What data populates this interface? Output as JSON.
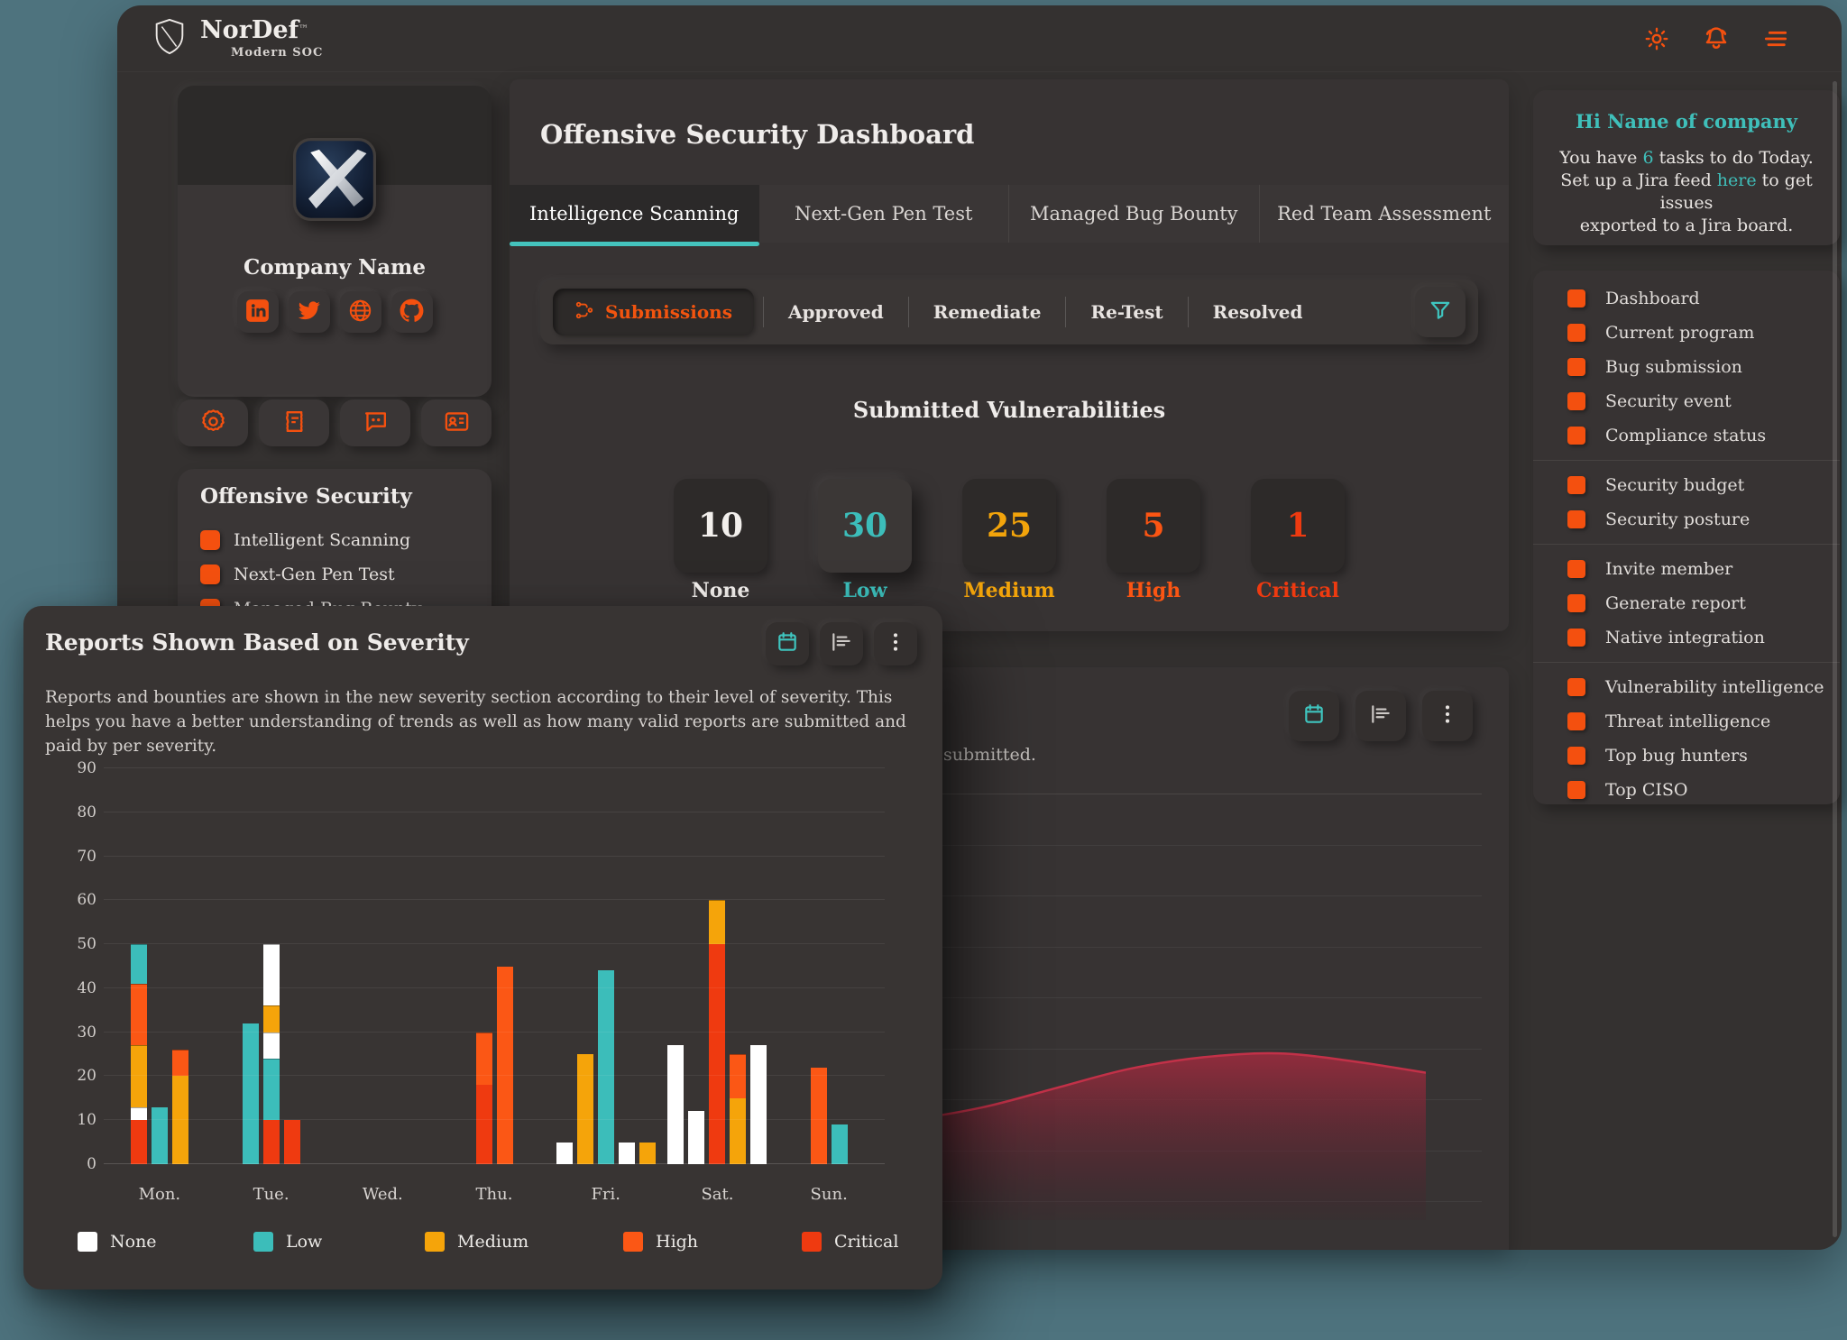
{
  "header": {
    "brand": "NorDef",
    "tm": "™",
    "subtitle": "Modern SOC",
    "actions": [
      "theme-sun",
      "notifications-bell",
      "menu"
    ]
  },
  "left_sidebar": {
    "profile": {
      "company_name": "Company Name",
      "socials": [
        "linkedin",
        "twitter",
        "globe",
        "github"
      ]
    },
    "quick_actions": [
      "settings-gear",
      "receipt",
      "chat",
      "contact-card"
    ],
    "menu": {
      "title": "Offensive Security",
      "items": [
        "Intelligent Scanning",
        "Next-Gen Pen Test",
        "Managed Bug Bounty"
      ]
    }
  },
  "main": {
    "title": "Offensive Security Dashboard",
    "tabs": [
      {
        "label": "Intelligence Scanning",
        "active": true
      },
      {
        "label": "Next-Gen Pen Test",
        "active": false
      },
      {
        "label": "Managed Bug Bounty",
        "active": false
      },
      {
        "label": "Red Team Assessment",
        "active": false
      }
    ],
    "subtabs": {
      "active": "Submissions",
      "items": [
        "Submissions",
        "Approved",
        "Remediate",
        "Re-Test",
        "Resolved"
      ]
    },
    "vuln": {
      "heading": "Submitted Vulnerabilities",
      "stats": [
        {
          "value": "10",
          "label": "None",
          "color": "#f2efec",
          "elevated": false
        },
        {
          "value": "30",
          "label": "Low",
          "color": "#3cbdba",
          "elevated": true
        },
        {
          "value": "25",
          "label": "Medium",
          "color": "#f2a40b",
          "elevated": false
        },
        {
          "value": "5",
          "label": "High",
          "color": "#fb5513",
          "elevated": false
        },
        {
          "value": "1",
          "label": "Critical",
          "color": "#ee3a10",
          "elevated": false
        }
      ]
    }
  },
  "area_panel": {
    "visible_text": "submitted.",
    "toolbar_icons": [
      "calendar",
      "bar-rows",
      "kebab"
    ]
  },
  "right_sidebar": {
    "greeting": {
      "title": "Hi Name of company",
      "lines": [
        [
          {
            "t": "You have "
          },
          {
            "t": "6",
            "accent": true
          },
          {
            "t": " tasks to do Today."
          }
        ],
        [
          {
            "t": "Set up a Jira feed "
          },
          {
            "t": "here",
            "accent": true,
            "link": true
          },
          {
            "t": " to get issues"
          }
        ],
        [
          {
            "t": "exported to a Jira board."
          }
        ]
      ]
    },
    "tasks": {
      "groups": [
        [
          "Dashboard",
          "Current program",
          "Bug submission",
          "Security event",
          "Compliance status"
        ],
        [
          "Security budget",
          "Security posture"
        ],
        [
          "Invite member",
          "Generate report",
          "Native integration"
        ],
        [
          "Vulnerability intelligence",
          "Threat intelligence",
          "Top bug hunters",
          "Top CISO"
        ]
      ]
    }
  },
  "overlay": {
    "title": "Reports Shown Based on Severity",
    "description": "Reports and bounties are shown in the new severity section according to their level of severity. This helps you have a better understanding of trends as well as how many valid reports are submitted and paid by per severity.",
    "toolbar_icons": [
      "calendar",
      "bar-rows",
      "kebab"
    ]
  },
  "chart_data": [
    {
      "type": "bar",
      "stacked": true,
      "title": "Reports Shown Based on Severity",
      "categories": [
        "Mon.",
        "Tue.",
        "Wed.",
        "Thu.",
        "Fri.",
        "Sat.",
        "Sun."
      ],
      "legend": [
        "None",
        "Low",
        "Medium",
        "High",
        "Critical"
      ],
      "legend_position": "bottom",
      "colors": {
        "None": "#ffffff",
        "Low": "#3cbdba",
        "Medium": "#f5a40a",
        "High": "#fb5715",
        "Critical": "#ef3a10"
      },
      "ylim": [
        0,
        90
      ],
      "ytick_step": 10,
      "grid": true,
      "days": [
        {
          "label": "Mon.",
          "bars": [
            [
              [
                "Critical",
                10
              ],
              [
                "None",
                3
              ],
              [
                "Medium",
                14
              ],
              [
                "High",
                14
              ],
              [
                "Low",
                9
              ]
            ],
            [
              [
                "Low",
                13
              ]
            ],
            [
              [
                "Medium",
                20
              ],
              [
                "High",
                6
              ]
            ]
          ]
        },
        {
          "label": "Tue.",
          "bars": [
            [
              [
                "Low",
                32
              ]
            ],
            [
              [
                "Critical",
                10
              ],
              [
                "Low",
                14
              ],
              [
                "None",
                6
              ],
              [
                "Medium",
                6
              ],
              [
                "None",
                14
              ]
            ],
            [
              [
                "Critical",
                10
              ]
            ]
          ]
        },
        {
          "label": "Wed.",
          "bars": []
        },
        {
          "label": "Thu.",
          "bars": [
            [
              [
                "Critical",
                18
              ],
              [
                "High",
                12
              ]
            ],
            [
              [
                "High",
                45
              ]
            ]
          ]
        },
        {
          "label": "Fri.",
          "bars": [
            [
              [
                "None",
                5
              ]
            ],
            [
              [
                "Medium",
                25
              ]
            ],
            [
              [
                "Low",
                44
              ]
            ],
            [
              [
                "None",
                5
              ]
            ],
            [
              [
                "Medium",
                5
              ]
            ]
          ]
        },
        {
          "label": "Sat.",
          "bars": [
            [
              [
                "None",
                27
              ]
            ],
            [
              [
                "None",
                12
              ]
            ],
            [
              [
                "Critical",
                50
              ],
              [
                "Medium",
                10
              ]
            ],
            [
              [
                "Medium",
                15
              ],
              [
                "High",
                10
              ]
            ],
            [
              [
                "None",
                27
              ]
            ]
          ]
        },
        {
          "label": "Sun.",
          "bars": [
            [
              [
                "High",
                22
              ]
            ],
            [
              [
                "Low",
                9
              ]
            ]
          ]
        }
      ]
    },
    {
      "type": "area",
      "visible_text_fragment": "submitted.",
      "line_color": "#c23148",
      "fill_color": "#8e2a3a",
      "grid": true,
      "axis_labels_visible": false,
      "values_estimated": true,
      "values": [
        40,
        37,
        33,
        29,
        26,
        26,
        29,
        34,
        39,
        42,
        43,
        41,
        38
      ]
    }
  ]
}
